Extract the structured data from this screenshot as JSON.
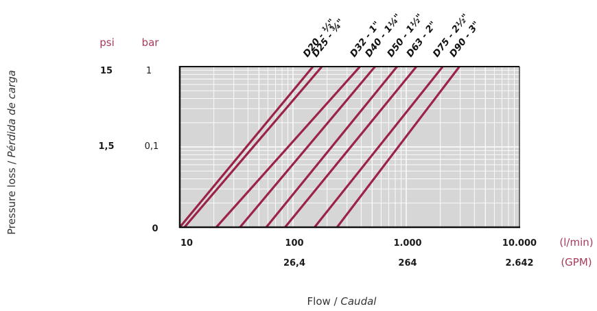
{
  "chart_data": {
    "type": "line",
    "y_axis_title": {
      "plain": "Pressure loss / ",
      "italic": "Pérdida de carga"
    },
    "x_axis_title": {
      "plain": "Flow / ",
      "italic": "Caudal"
    },
    "y_units": {
      "psi": "psi",
      "bar": "bar"
    },
    "x_units": {
      "lmin": "(l/min)",
      "gpm": "(GPM)"
    },
    "y_ticks_psi": [
      "15",
      "1,5",
      "0"
    ],
    "y_ticks_bar": [
      "1",
      "0,1"
    ],
    "x_ticks_lmin": [
      "10",
      "100",
      "1.000",
      "10.000"
    ],
    "x_ticks_gpm": [
      "26,4",
      "264",
      "2.642"
    ],
    "x_scale": "log",
    "y_scale": "log",
    "xlim": [
      10,
      10000
    ],
    "grid": true,
    "colors": {
      "line": "#9b2347",
      "plot_bg": "#d6d6d6",
      "grid": "#ffffff",
      "unit_text": "#a63a5a"
    },
    "series": [
      {
        "name": "D20 - ½\"",
        "x": [
          10,
          150
        ]
      },
      {
        "name": "D25 - ¾\"",
        "x": [
          11,
          180
        ]
      },
      {
        "name": "D32 - 1\"",
        "x": [
          21,
          390
        ]
      },
      {
        "name": "D40 - 1¼\"",
        "x": [
          34,
          530
        ]
      },
      {
        "name": "D50 - 1½\"",
        "x": [
          58,
          830
        ]
      },
      {
        "name": "D63 - 2\"",
        "x": [
          85,
          1230
        ]
      },
      {
        "name": "D75 - 2½\"",
        "x": [
          155,
          2100
        ]
      },
      {
        "name": "D90 - 3\"",
        "x": [
          245,
          2950
        ]
      }
    ]
  }
}
